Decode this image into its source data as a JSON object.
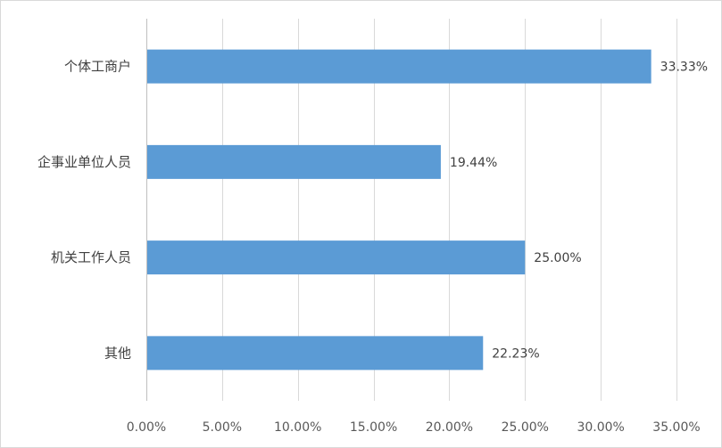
{
  "chart_data": {
    "type": "bar",
    "orientation": "horizontal",
    "categories": [
      "个体工商户",
      "企事业单位人员",
      "机关工作人员",
      "其他"
    ],
    "values": [
      33.33,
      19.44,
      25.0,
      22.23
    ],
    "value_labels": [
      "33.33%",
      "19.44%",
      "25.00%",
      "22.23%"
    ],
    "xlim": [
      0,
      35
    ],
    "xticks": [
      0,
      5,
      10,
      15,
      20,
      25,
      30,
      35
    ],
    "xtick_labels": [
      "0.00%",
      "5.00%",
      "10.00%",
      "15.00%",
      "20.00%",
      "25.00%",
      "30.00%",
      "35.00%"
    ],
    "title": "",
    "xlabel": "",
    "ylabel": "",
    "grid": "vertical",
    "legend": "none",
    "colors": {
      "bar": "#5b9bd5",
      "grid": "#d9d9d9",
      "axis": "#bfbfbf"
    }
  }
}
